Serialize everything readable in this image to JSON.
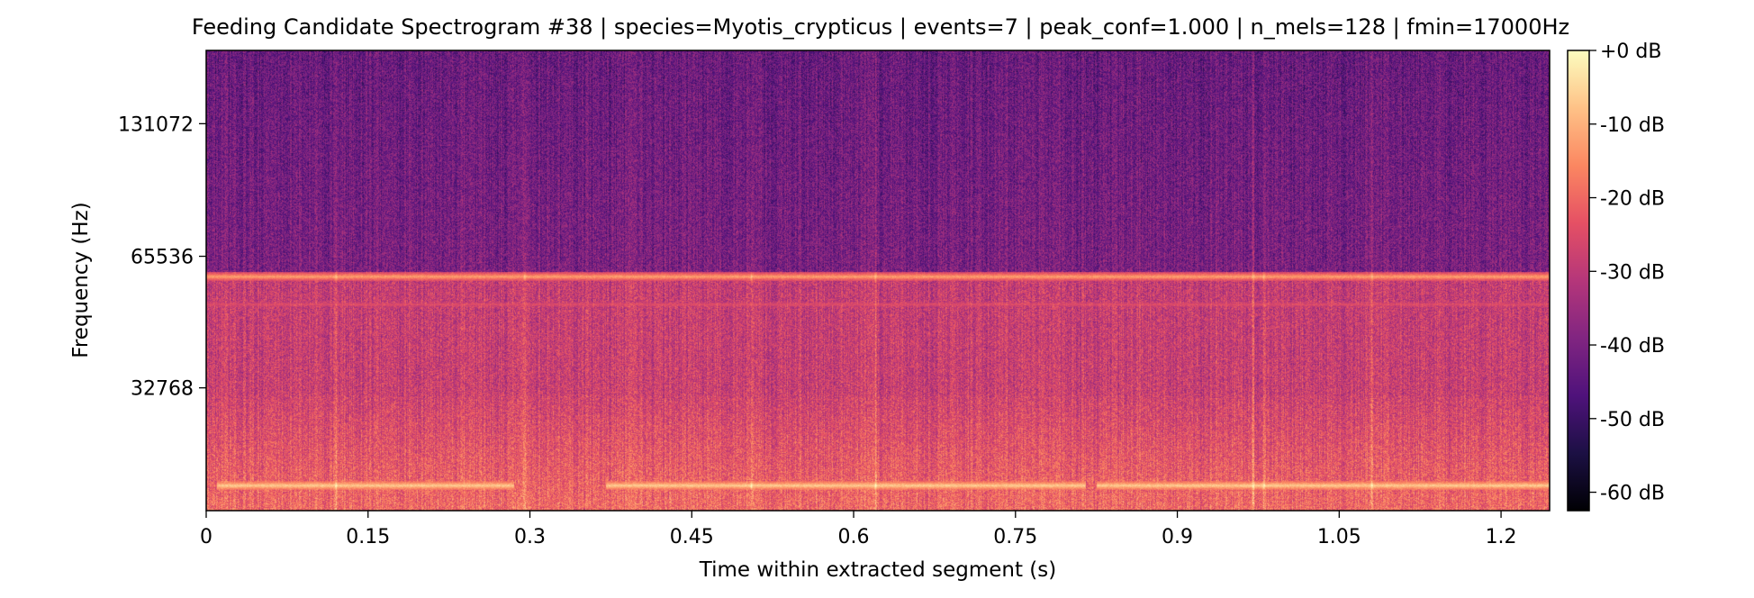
{
  "chart_data": {
    "type": "heatmap",
    "title": "Feeding Candidate Spectrogram #38 | species=Myotis_crypticus | events=7 | peak_conf=1.000 | n_mels=128 | fmin=17000Hz",
    "xlabel": "Time within extracted segment (s)",
    "ylabel": "Frequency (Hz)",
    "x_ticks": [
      "0",
      "0.15",
      "0.3",
      "0.45",
      "0.6",
      "0.75",
      "0.9",
      "1.05",
      "1.2"
    ],
    "x_tick_values": [
      0,
      0.15,
      0.3,
      0.45,
      0.6,
      0.75,
      0.9,
      1.05,
      1.2
    ],
    "xlim": [
      0,
      1.245
    ],
    "y_scale": "mel",
    "y_ticks": [
      "32768",
      "65536",
      "131072"
    ],
    "y_tick_values": [
      32768,
      65536,
      131072
    ],
    "ylim": [
      17000,
      192000
    ],
    "colormap": "magma",
    "colorbar": {
      "ticks": [
        "+0 dB",
        "-10 dB",
        "-20 dB",
        "-30 dB",
        "-40 dB",
        "-50 dB",
        "-60 dB"
      ],
      "tick_values": [
        0,
        -10,
        -20,
        -30,
        -40,
        -50,
        -60
      ],
      "range": [
        -62.5,
        0
      ]
    },
    "features": {
      "tonal_bands": [
        {
          "frequency": 59000,
          "level": -12
        },
        {
          "frequency": 51000,
          "level": -24
        },
        {
          "frequency": 19500,
          "level": -6
        }
      ],
      "low_band_gaps": [
        [
          0.0,
          0.01
        ],
        [
          0.285,
          0.37
        ],
        [
          0.815,
          0.825
        ]
      ],
      "transients": [
        0.12,
        0.295,
        0.505,
        0.62,
        0.97,
        0.98,
        1.08
      ]
    }
  }
}
